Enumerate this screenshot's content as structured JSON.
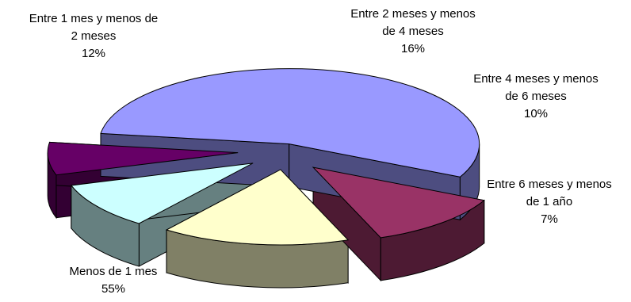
{
  "chart_data": {
    "type": "pie",
    "style": "3d-exploded",
    "title": "",
    "slices": [
      {
        "label_lines": [
          "Menos de 1 mes"
        ],
        "percent_label": "55%",
        "value": 55,
        "color": "#9999ff",
        "side_color": "#4d4d80"
      },
      {
        "label_lines": [
          "Entre 1 mes y menos de",
          "2 meses"
        ],
        "percent_label": "12%",
        "value": 12,
        "color": "#993366",
        "side_color": "#4d1a33"
      },
      {
        "label_lines": [
          "Entre 2 meses y menos",
          "de 4 meses"
        ],
        "percent_label": "16%",
        "value": 16,
        "color": "#ffffcc",
        "side_color": "#808066"
      },
      {
        "label_lines": [
          "Entre 4 meses y menos",
          "de 6 meses"
        ],
        "percent_label": "10%",
        "value": 10,
        "color": "#ccffff",
        "side_color": "#668080"
      },
      {
        "label_lines": [
          "Entre 6 meses y menos",
          "de 1 año"
        ],
        "percent_label": "7%",
        "value": 7,
        "color": "#660066",
        "side_color": "#330033"
      }
    ]
  }
}
